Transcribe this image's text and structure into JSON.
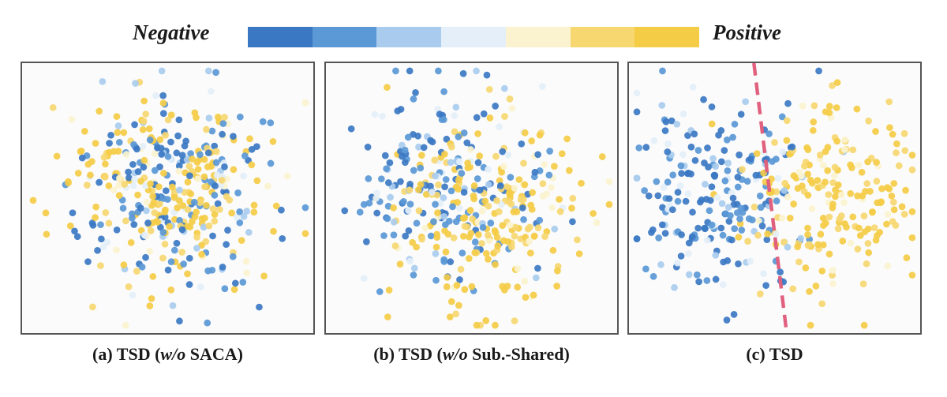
{
  "legend": {
    "negative_label": "Negative",
    "positive_label": "Positive",
    "colors": [
      "#3b78c3",
      "#5a98d6",
      "#a9ccee",
      "#e4eff9",
      "#fbf3cf",
      "#f6d770",
      "#f4cc46"
    ]
  },
  "captions": [
    {
      "prefix": "(a) TSD (",
      "italic": "w/o",
      "suffix": " SACA)"
    },
    {
      "prefix": "(b) TSD (",
      "italic": "w/o",
      "suffix": " Sub.-Shared)"
    },
    {
      "prefix": "(c) TSD",
      "italic": "",
      "suffix": ""
    }
  ],
  "chart_data": [
    {
      "type": "scatter",
      "title": "(a) TSD (w/o SACA)",
      "series": [
        {
          "name": "Negative"
        },
        {
          "name": "Positive"
        }
      ],
      "separation": "mixed",
      "decision_boundary": false
    },
    {
      "type": "scatter",
      "title": "(b) TSD (w/o Sub.-Shared)",
      "series": [
        {
          "name": "Negative"
        },
        {
          "name": "Positive"
        }
      ],
      "separation": "partial",
      "decision_boundary": false
    },
    {
      "type": "scatter",
      "title": "(c) TSD",
      "series": [
        {
          "name": "Negative"
        },
        {
          "name": "Positive"
        }
      ],
      "separation": "clear",
      "decision_boundary": true,
      "boundary_color": "#e0607e"
    }
  ]
}
